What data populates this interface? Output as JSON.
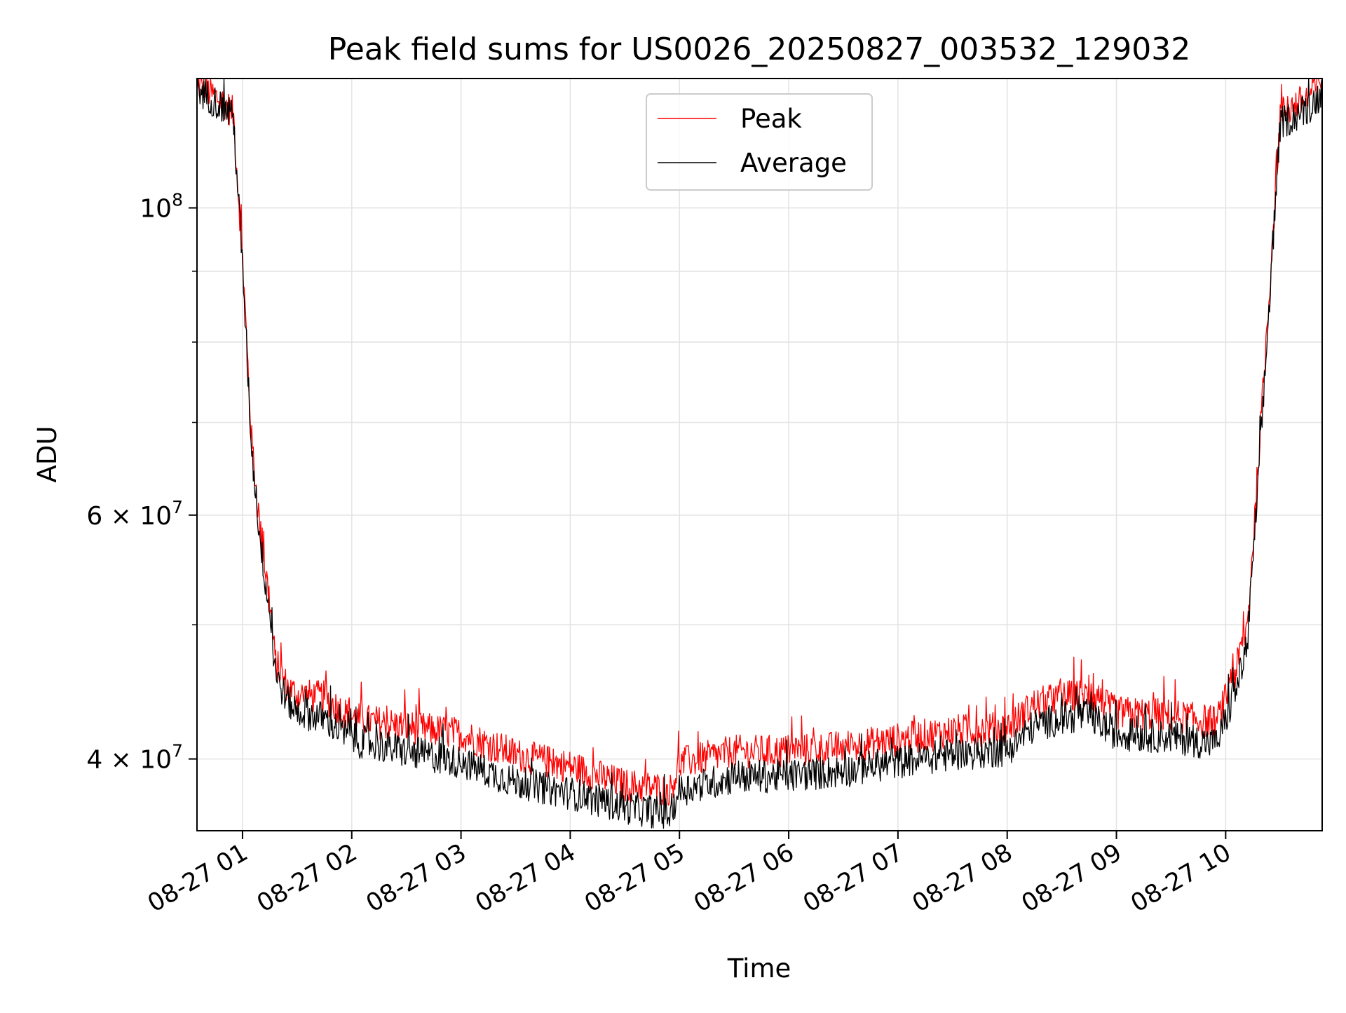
{
  "chart_data": {
    "type": "line",
    "title": "Peak field sums for US0026_20250827_003532_129032",
    "xlabel": "Time",
    "ylabel": "ADU",
    "y_scale": "log",
    "x_range": [
      "2025-08-27 00:35",
      "2025-08-27 10:53"
    ],
    "ylim": [
      35500000,
      124000000
    ],
    "grid": true,
    "legend_placement": "upper center",
    "x_ticks": [
      "08-27 01",
      "08-27 02",
      "08-27 03",
      "08-27 04",
      "08-27 05",
      "08-27 06",
      "08-27 07",
      "08-27 08",
      "08-27 09",
      "08-27 10"
    ],
    "x_tick_hours": [
      1,
      2,
      3,
      4,
      5,
      6,
      7,
      8,
      9,
      10
    ],
    "y_major_ticks": [
      {
        "value": 100000000,
        "base": "10",
        "exp": "8",
        "mant": ""
      },
      {
        "value": 60000000,
        "base": "10",
        "exp": "7",
        "mant": "6"
      },
      {
        "value": 40000000,
        "base": "10",
        "exp": "7",
        "mant": "4"
      }
    ],
    "y_minor_ticks": [
      50000000,
      70000000,
      80000000,
      90000000
    ],
    "series": [
      {
        "name": "Peak",
        "color": "#ff0000",
        "x": [
          "00:35",
          "00:50",
          "00:55",
          "01:00",
          "01:05",
          "01:10",
          "01:15",
          "01:18",
          "01:25",
          "01:30",
          "01:45",
          "02:00",
          "02:30",
          "03:00",
          "03:30",
          "04:00",
          "04:30",
          "04:55",
          "05:00",
          "05:30",
          "06:00",
          "06:30",
          "07:00",
          "07:30",
          "08:00",
          "08:15",
          "08:30",
          "08:45",
          "09:00",
          "09:30",
          "09:55",
          "10:05",
          "10:12",
          "10:20",
          "10:30",
          "10:45",
          "10:53"
        ],
        "values": [
          123000000,
          119000000,
          117000000,
          92000000,
          68000000,
          58000000,
          52000000,
          47000000,
          45000000,
          44500000,
          44300000,
          42800000,
          42200000,
          41700000,
          40300000,
          39500000,
          38300000,
          38000000,
          39700000,
          40500000,
          40500000,
          40800000,
          41300000,
          41900000,
          42100000,
          43800000,
          44300000,
          44500000,
          43200000,
          43000000,
          42500000,
          46000000,
          50000000,
          72000000,
          117000000,
          120000000,
          124000000
        ]
      },
      {
        "name": "Average",
        "color": "#000000",
        "x": [
          "00:35",
          "00:50",
          "00:55",
          "01:00",
          "01:05",
          "01:10",
          "01:15",
          "01:18",
          "01:25",
          "01:30",
          "01:45",
          "02:00",
          "02:30",
          "03:00",
          "03:30",
          "04:00",
          "04:30",
          "04:55",
          "05:00",
          "05:30",
          "06:00",
          "06:30",
          "07:00",
          "07:30",
          "08:00",
          "08:15",
          "08:30",
          "08:45",
          "09:00",
          "09:30",
          "09:55",
          "10:05",
          "10:12",
          "10:20",
          "10:30",
          "10:45",
          "10:53"
        ],
        "values": [
          122000000,
          118000000,
          116000000,
          91000000,
          67000000,
          57000000,
          51000000,
          46000000,
          44000000,
          43300000,
          42800000,
          41300000,
          40500000,
          39800000,
          38500000,
          37800000,
          36900000,
          36500000,
          38000000,
          38800000,
          38900000,
          39200000,
          39800000,
          40300000,
          40600000,
          42300000,
          42800000,
          43000000,
          41700000,
          41500000,
          41000000,
          44500000,
          48500000,
          70000000,
          115000000,
          118000000,
          121000000
        ]
      }
    ]
  }
}
